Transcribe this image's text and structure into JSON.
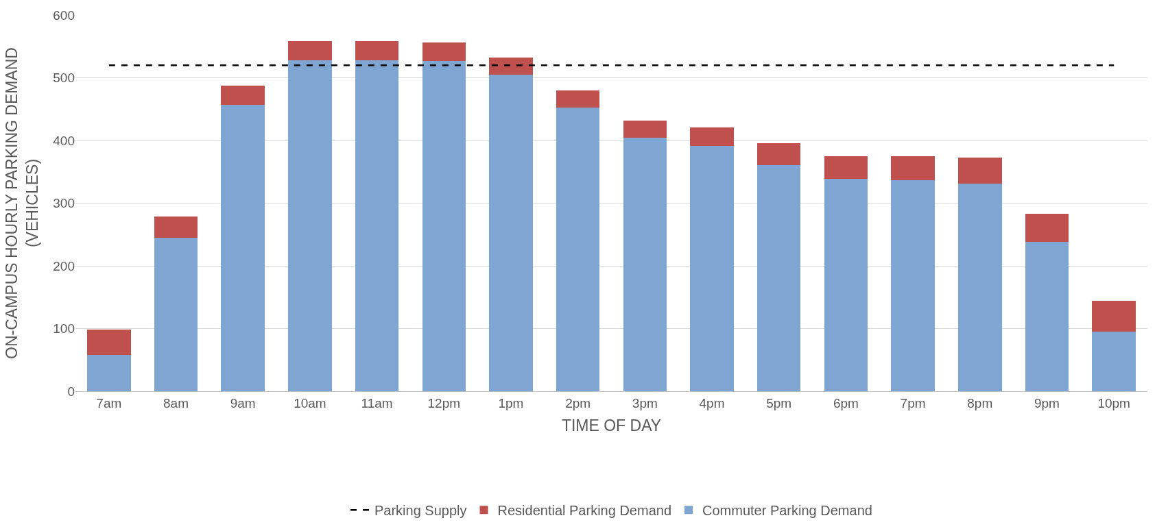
{
  "chart_data": {
    "type": "bar",
    "stacked": true,
    "xlabel": "TIME OF DAY",
    "ylabel": "ON-CAMPUS HOURLY PARKING DEMAND\n(VEHICLES)",
    "categories": [
      "7am",
      "8am",
      "9am",
      "10am",
      "11am",
      "12pm",
      "1pm",
      "2pm",
      "3pm",
      "4pm",
      "5pm",
      "6pm",
      "7pm",
      "8pm",
      "9pm",
      "10pm"
    ],
    "series": [
      {
        "name": "Commuter Parking Demand",
        "color": "#7fa6d3",
        "values": [
          58,
          245,
          457,
          528,
          528,
          527,
          505,
          453,
          404,
          391,
          361,
          339,
          337,
          331,
          238,
          95
        ]
      },
      {
        "name": "Residential Parking Demand",
        "color": "#c0504d",
        "values": [
          40,
          34,
          30,
          30,
          30,
          29,
          27,
          27,
          28,
          30,
          35,
          36,
          38,
          42,
          45,
          49
        ]
      },
      {
        "name": "Parking Supply",
        "type": "line",
        "color": "#000000",
        "line_style": "dashed",
        "values": [
          520,
          520,
          520,
          520,
          520,
          520,
          520,
          520,
          520,
          520,
          520,
          520,
          520,
          520,
          520,
          520
        ]
      }
    ],
    "ylim": [
      0,
      600
    ],
    "yticks": [
      0,
      100,
      200,
      300,
      400,
      500,
      600
    ],
    "grid": "y",
    "legend": "bottom"
  }
}
